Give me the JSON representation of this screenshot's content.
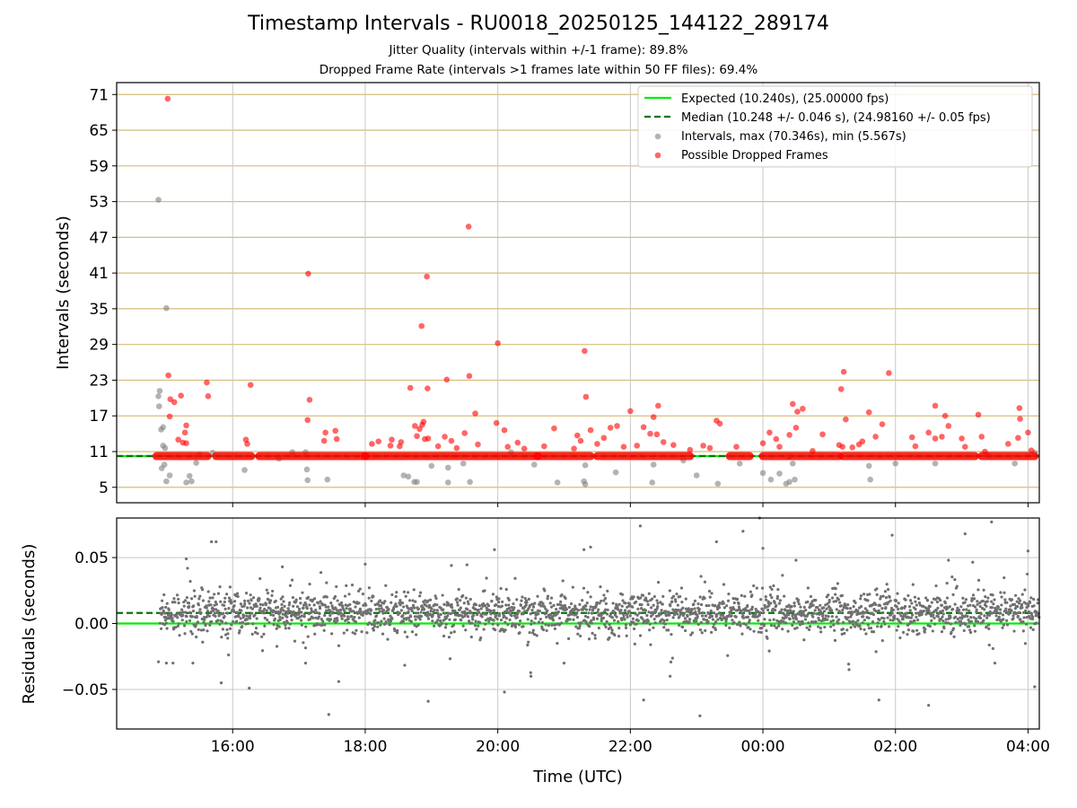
{
  "chart_data": [
    {
      "type": "scatter",
      "title": "Timestamp Intervals - RU0018_20250125_144122_289174",
      "subtitles": [
        "Jitter Quality (intervals within +/-1 frame): 89.8%",
        "Dropped Frame Rate (intervals >1 frames late within 50 FF files): 69.4%"
      ],
      "ylabel": "Intervals (seconds)",
      "xlabel": "",
      "x_unit": "hours (UTC, continuing past midnight)",
      "xlim": [
        14.25,
        28.17
      ],
      "ylim": [
        2.4,
        73.0
      ],
      "yticks": [
        "71",
        "65",
        "59",
        "53",
        "47",
        "41",
        "35",
        "29",
        "23",
        "17",
        "11",
        "5"
      ],
      "ytick_values": [
        71,
        65,
        59,
        53,
        47,
        41,
        35,
        29,
        23,
        17,
        11,
        5
      ],
      "grid": true,
      "legend_position": "top-right",
      "legend": [
        "Expected (10.240s), (25.00000 fps)",
        "Median (10.248 +/- 0.046 s), (24.98160 +/- 0.05 fps)",
        "Intervals, max (70.346s), min (5.567s)",
        "Possible Dropped Frames"
      ],
      "expected": 10.24,
      "median": 10.248,
      "colors": {
        "expected": "#00ee00",
        "median": "#007700",
        "intervals": "#808080",
        "dropped": "#ff0000",
        "hgrid": "#d4be78"
      },
      "dropped_band": {
        "x_segments": [
          [
            14.85,
            15.62
          ],
          [
            15.75,
            16.28
          ],
          [
            16.4,
            18.0
          ],
          [
            18.0,
            20.6
          ],
          [
            20.6,
            21.4
          ],
          [
            21.5,
            22.9
          ],
          [
            23.5,
            23.8
          ],
          [
            24.0,
            25.15
          ],
          [
            25.2,
            27.2
          ],
          [
            27.3,
            28.1
          ]
        ],
        "y": 10.24
      },
      "series": [
        {
          "name": "Possible Dropped Frames",
          "points": [
            [
              15.02,
              70.3
            ],
            [
              17.14,
              40.9
            ],
            [
              18.93,
              40.4
            ],
            [
              19.56,
              48.8
            ],
            [
              18.85,
              32.1
            ],
            [
              20.0,
              29.2
            ],
            [
              21.31,
              27.9
            ],
            [
              15.03,
              23.8
            ],
            [
              15.06,
              19.8
            ],
            [
              15.12,
              19.3
            ],
            [
              15.22,
              20.4
            ],
            [
              15.61,
              22.6
            ],
            [
              15.63,
              20.3
            ],
            [
              16.27,
              22.2
            ],
            [
              17.13,
              16.3
            ],
            [
              17.16,
              19.7
            ],
            [
              18.68,
              21.7
            ],
            [
              18.94,
              21.6
            ],
            [
              19.23,
              23.1
            ],
            [
              19.57,
              23.7
            ],
            [
              19.66,
              17.4
            ],
            [
              21.33,
              20.2
            ],
            [
              22.0,
              17.8
            ],
            [
              22.42,
              18.7
            ],
            [
              23.3,
              16.2
            ],
            [
              24.52,
              17.7
            ],
            [
              24.45,
              19.0
            ],
            [
              25.22,
              24.4
            ],
            [
              25.18,
              21.5
            ],
            [
              25.6,
              17.6
            ],
            [
              25.9,
              24.2
            ],
            [
              26.6,
              18.7
            ],
            [
              26.75,
              17.0
            ],
            [
              27.25,
              17.2
            ],
            [
              27.87,
              18.3
            ],
            [
              27.88,
              16.5
            ],
            [
              15.05,
              16.9
            ],
            [
              15.3,
              15.4
            ],
            [
              15.28,
              14.2
            ],
            [
              15.25,
              12.5
            ],
            [
              15.3,
              12.4
            ],
            [
              15.18,
              13.0
            ],
            [
              16.2,
              13.0
            ],
            [
              16.22,
              12.3
            ],
            [
              17.4,
              14.2
            ],
            [
              17.55,
              14.5
            ],
            [
              17.57,
              13.1
            ],
            [
              17.38,
              12.8
            ],
            [
              18.1,
              12.3
            ],
            [
              18.2,
              12.7
            ],
            [
              18.4,
              13.0
            ],
            [
              18.38,
              12.0
            ],
            [
              18.52,
              11.9
            ],
            [
              18.54,
              12.6
            ],
            [
              18.75,
              15.3
            ],
            [
              18.78,
              13.6
            ],
            [
              18.82,
              14.8
            ],
            [
              18.86,
              15.5
            ],
            [
              18.88,
              16.0
            ],
            [
              18.9,
              13.1
            ],
            [
              18.95,
              13.2
            ],
            [
              19.1,
              11.9
            ],
            [
              19.3,
              12.8
            ],
            [
              19.5,
              14.1
            ],
            [
              19.38,
              11.6
            ],
            [
              19.98,
              15.8
            ],
            [
              20.1,
              14.6
            ],
            [
              20.15,
              11.8
            ],
            [
              20.4,
              11.5
            ],
            [
              20.7,
              11.9
            ],
            [
              20.85,
              14.9
            ],
            [
              21.2,
              13.7
            ],
            [
              21.25,
              12.8
            ],
            [
              21.4,
              14.6
            ],
            [
              21.5,
              12.3
            ],
            [
              21.6,
              13.3
            ],
            [
              21.7,
              15.0
            ],
            [
              21.8,
              15.3
            ],
            [
              21.9,
              11.8
            ],
            [
              22.1,
              12.0
            ],
            [
              22.2,
              15.1
            ],
            [
              22.3,
              14.0
            ],
            [
              22.35,
              16.8
            ],
            [
              22.5,
              12.6
            ],
            [
              22.65,
              12.1
            ],
            [
              22.9,
              11.3
            ],
            [
              23.1,
              12.0
            ],
            [
              23.35,
              15.7
            ],
            [
              23.6,
              11.8
            ],
            [
              24.0,
              12.4
            ],
            [
              24.1,
              14.2
            ],
            [
              24.2,
              13.1
            ],
            [
              24.25,
              11.8
            ],
            [
              24.5,
              15.0
            ],
            [
              24.6,
              18.2
            ],
            [
              24.75,
              11.1
            ],
            [
              24.9,
              13.9
            ],
            [
              25.15,
              12.1
            ],
            [
              25.2,
              11.8
            ],
            [
              25.25,
              16.4
            ],
            [
              25.35,
              11.7
            ],
            [
              25.45,
              12.2
            ],
            [
              25.5,
              12.7
            ],
            [
              25.7,
              13.5
            ],
            [
              25.8,
              15.6
            ],
            [
              26.25,
              13.4
            ],
            [
              26.3,
              11.9
            ],
            [
              26.5,
              14.2
            ],
            [
              26.6,
              13.2
            ],
            [
              26.7,
              13.5
            ],
            [
              26.8,
              15.3
            ],
            [
              27.0,
              13.2
            ],
            [
              27.05,
              11.8
            ],
            [
              27.3,
              13.5
            ],
            [
              27.35,
              11.0
            ],
            [
              27.7,
              12.3
            ],
            [
              27.85,
              13.3
            ],
            [
              28.0,
              14.2
            ],
            [
              28.05,
              11.2
            ],
            [
              19.2,
              13.5
            ],
            [
              19.7,
              12.2
            ],
            [
              20.3,
              12.5
            ],
            [
              21.15,
              11.5
            ],
            [
              22.4,
              13.9
            ],
            [
              23.2,
              11.6
            ],
            [
              24.4,
              13.8
            ]
          ]
        },
        {
          "name": "Intervals, max (70.346s), min (5.567s)",
          "points": [
            [
              14.88,
              53.3
            ],
            [
              15.0,
              35.1
            ],
            [
              14.9,
              21.2
            ],
            [
              14.88,
              20.3
            ],
            [
              14.89,
              18.6
            ],
            [
              14.92,
              14.7
            ],
            [
              14.95,
              15.1
            ],
            [
              14.95,
              12.0
            ],
            [
              14.98,
              11.6
            ],
            [
              14.93,
              8.2
            ],
            [
              14.97,
              8.8
            ],
            [
              15.0,
              6.0
            ],
            [
              15.05,
              7.0
            ],
            [
              15.38,
              6.0
            ],
            [
              15.3,
              5.8
            ],
            [
              15.35,
              6.9
            ],
            [
              15.45,
              9.1
            ],
            [
              15.7,
              10.8
            ],
            [
              16.18,
              7.9
            ],
            [
              17.1,
              10.9
            ],
            [
              17.13,
              6.2
            ],
            [
              17.12,
              8.0
            ],
            [
              17.43,
              6.3
            ],
            [
              16.9,
              10.9
            ],
            [
              18.58,
              7.0
            ],
            [
              18.65,
              6.8
            ],
            [
              18.74,
              5.9
            ],
            [
              18.78,
              5.9
            ],
            [
              19.0,
              8.6
            ],
            [
              19.25,
              5.8
            ],
            [
              19.25,
              8.3
            ],
            [
              19.48,
              9.0
            ],
            [
              19.58,
              5.9
            ],
            [
              20.55,
              8.8
            ],
            [
              20.9,
              5.8
            ],
            [
              21.3,
              6.0
            ],
            [
              21.32,
              5.5
            ],
            [
              21.32,
              8.7
            ],
            [
              21.78,
              7.5
            ],
            [
              22.35,
              8.8
            ],
            [
              22.33,
              5.8
            ],
            [
              23.0,
              7.0
            ],
            [
              23.32,
              5.6
            ],
            [
              23.65,
              9.0
            ],
            [
              24.0,
              7.4
            ],
            [
              24.12,
              6.3
            ],
            [
              24.25,
              7.3
            ],
            [
              24.35,
              5.6
            ],
            [
              24.4,
              5.9
            ],
            [
              24.48,
              6.3
            ],
            [
              24.45,
              9.0
            ],
            [
              24.4,
              10.1
            ],
            [
              25.62,
              6.3
            ],
            [
              25.6,
              8.6
            ],
            [
              26.0,
              9.0
            ],
            [
              26.6,
              9.0
            ],
            [
              27.4,
              10.3
            ],
            [
              27.8,
              9.0
            ],
            [
              28.1,
              10.8
            ],
            [
              15.5,
              10.5
            ],
            [
              16.7,
              9.8
            ],
            [
              20.2,
              10.9
            ],
            [
              22.8,
              9.5
            ]
          ]
        }
      ]
    },
    {
      "type": "scatter",
      "xlabel": "Time (UTC)",
      "ylabel": "Residuals (seconds)",
      "xlim": [
        14.25,
        28.17
      ],
      "ylim": [
        -0.08,
        0.08
      ],
      "xticks": [
        "16:00",
        "18:00",
        "20:00",
        "22:00",
        "00:00",
        "02:00",
        "04:00"
      ],
      "xtick_values": [
        16,
        18,
        20,
        22,
        24,
        26,
        28
      ],
      "yticks": [
        "0.05",
        "0.00",
        "−0.05"
      ],
      "ytick_values": [
        0.05,
        0.0,
        -0.05
      ],
      "grid": true,
      "expected_residual": 0.0,
      "median_residual": 0.008,
      "residual_x_range": [
        14.9,
        28.17
      ],
      "residual_typical_range": [
        -0.02,
        0.035
      ],
      "colors": {
        "expected": "#00ee00",
        "median": "#007700",
        "points": "#707070"
      },
      "series": [
        {
          "name": "Residuals",
          "outliers": [
            [
              15.3,
              0.049
            ],
            [
              15.68,
              0.062
            ],
            [
              15.75,
              0.062
            ],
            [
              16.25,
              -0.049
            ],
            [
              17.45,
              -0.069
            ],
            [
              17.6,
              -0.044
            ],
            [
              18.95,
              -0.059
            ],
            [
              19.95,
              0.056
            ],
            [
              20.1,
              -0.052
            ],
            [
              21.3,
              0.056
            ],
            [
              21.4,
              0.058
            ],
            [
              22.15,
              0.074
            ],
            [
              22.2,
              -0.058
            ],
            [
              23.05,
              -0.07
            ],
            [
              23.3,
              0.062
            ],
            [
              23.7,
              0.07
            ],
            [
              23.95,
              0.08
            ],
            [
              24.0,
              0.057
            ],
            [
              25.75,
              -0.058
            ],
            [
              25.95,
              0.067
            ],
            [
              26.5,
              -0.062
            ],
            [
              27.05,
              0.068
            ],
            [
              27.45,
              0.077
            ],
            [
              28.0,
              0.055
            ],
            [
              28.1,
              -0.048
            ],
            [
              15.1,
              -0.03
            ],
            [
              15.4,
              -0.03
            ],
            [
              16.75,
              0.043
            ],
            [
              18.0,
              0.045
            ],
            [
              19.3,
              0.044
            ],
            [
              20.5,
              -0.04
            ],
            [
              21.0,
              -0.03
            ],
            [
              22.6,
              -0.04
            ],
            [
              24.5,
              0.048
            ],
            [
              25.3,
              -0.035
            ],
            [
              26.8,
              0.048
            ],
            [
              27.5,
              -0.03
            ],
            [
              14.88,
              -0.029
            ],
            [
              15.0,
              -0.03
            ],
            [
              17.1,
              -0.03
            ]
          ]
        }
      ]
    }
  ]
}
